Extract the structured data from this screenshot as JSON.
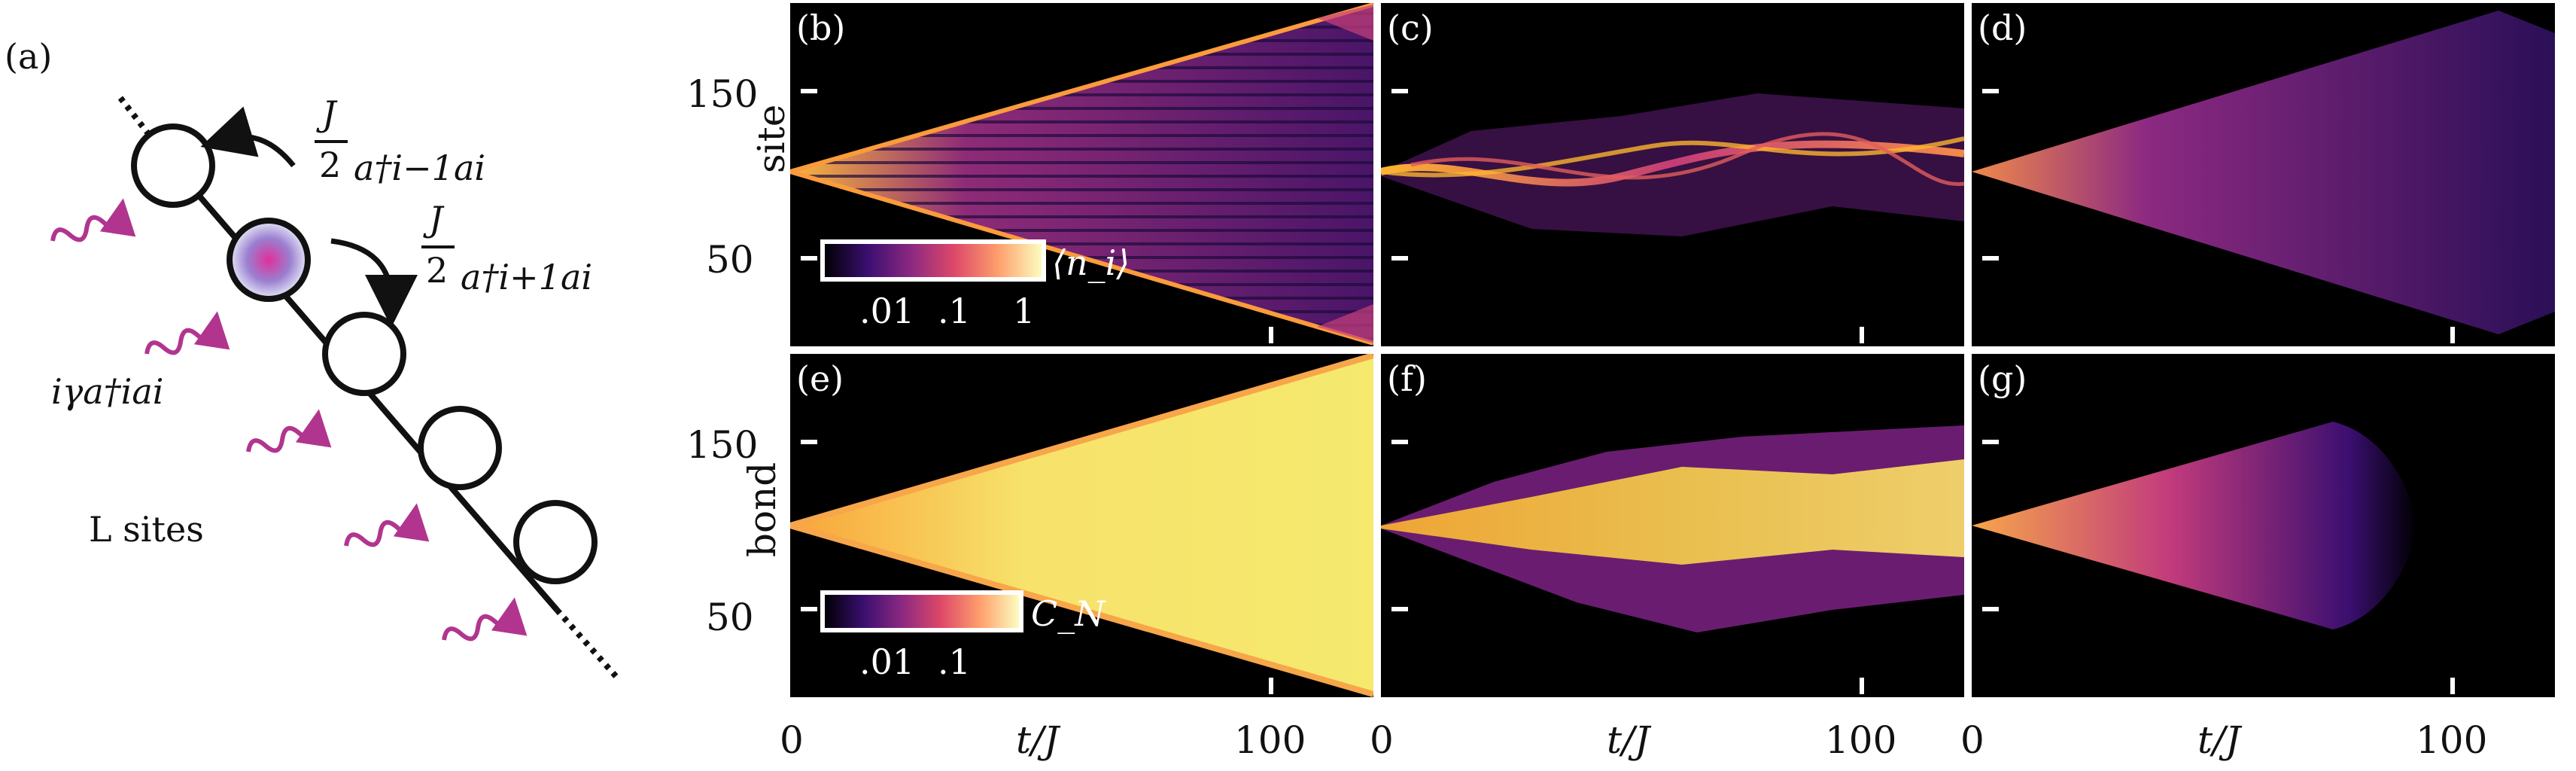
{
  "schematic": {
    "label": "(a)",
    "hop_left": "J/2 a†_{i−1} a_i",
    "hop_left_frac_num": "J",
    "hop_left_frac_den": "2",
    "hop_left_op": "a†i−1ai",
    "hop_right_frac_num": "J",
    "hop_right_frac_den": "2",
    "hop_right_op": "a†i+1ai",
    "loss": "iγa†iai",
    "sites": "L sites"
  },
  "panels": [
    {
      "id": "b",
      "label": "(b)",
      "kind": "occupation_free"
    },
    {
      "id": "c",
      "label": "(c)",
      "kind": "occupation_disordered"
    },
    {
      "id": "d",
      "label": "(d)",
      "kind": "occupation_lossy"
    },
    {
      "id": "e",
      "label": "(e)",
      "kind": "correlation_free"
    },
    {
      "id": "f",
      "label": "(f)",
      "kind": "correlation_disordered"
    },
    {
      "id": "g",
      "label": "(g)",
      "kind": "correlation_lossy"
    }
  ],
  "axes": {
    "top_ylabel": "site",
    "bottom_ylabel": "bond",
    "yticks": [
      "150",
      "50"
    ],
    "xticks": [
      "0",
      "100"
    ],
    "xlabel": "t/J"
  },
  "colorbars": {
    "occupation": {
      "ticks": [
        ".01",
        ".1",
        "1"
      ],
      "label": "⟨n_i⟩"
    },
    "correlation": {
      "ticks": [
        ".01",
        ".1"
      ],
      "label": "C_N"
    }
  },
  "colors": {
    "low": "#000004",
    "mid": "#b5367a",
    "high": "#fcffa4"
  }
}
